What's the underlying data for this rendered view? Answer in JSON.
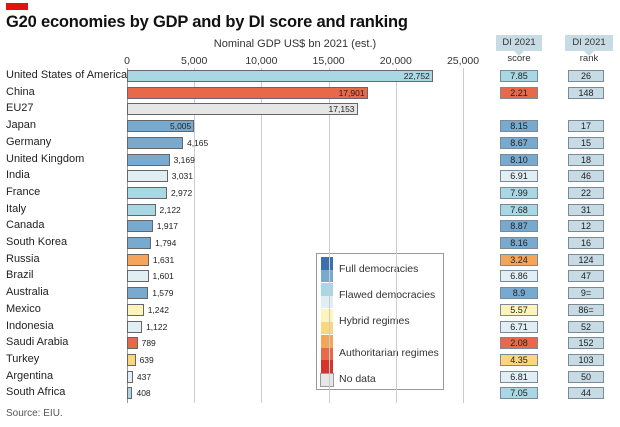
{
  "title": "G20 economies by GDP and by DI score and ranking",
  "source": "Source: EIU.",
  "colors": {
    "full_dark": "#3b6fae",
    "full": "#78aad0",
    "flawed": "#a9d7e3",
    "flawed_light": "#e1eff5",
    "hybrid_light": "#fdf3bb",
    "hybrid": "#fbd67c",
    "auth_light": "#f5a55a",
    "auth": "#e8694a",
    "auth_dark": "#d8332b",
    "no_data": "#e6e6e6",
    "brand_red": "#e3120b"
  },
  "chart_data": {
    "type": "bar",
    "orientation": "horizontal",
    "xlabel": "Nominal GDP US$ bn 2021 (est.)",
    "xlim": [
      0,
      25000
    ],
    "xticks": [
      "0",
      "5,000",
      "10,000",
      "15,000",
      "20,000",
      "25,000"
    ],
    "grid": true,
    "legend_placement": "bottom-right of plot",
    "score_header": "DI 2021 score",
    "rank_header": "DI 2021 rank",
    "categories": [
      "United States of America",
      "China",
      "EU27",
      "Japan",
      "Germany",
      "United Kingdom",
      "India",
      "France",
      "Italy",
      "Canada",
      "South Korea",
      "Russia",
      "Brazil",
      "Australia",
      "Mexico",
      "Indonesia",
      "Saudi Arabia",
      "Turkey",
      "Argentina",
      "South Africa"
    ],
    "values": [
      22752,
      17901,
      17153,
      5005,
      4165,
      3169,
      3031,
      2972,
      2122,
      1917,
      1794,
      1631,
      1601,
      1579,
      1242,
      1122,
      789,
      639,
      437,
      408
    ],
    "value_labels": [
      "22,752",
      "17,901",
      "17,153",
      "5,005",
      "4,165",
      "3,169",
      "3,031",
      "2,972",
      "2,122",
      "1,917",
      "1,794",
      "1,631",
      "1,601",
      "1,579",
      "1,242",
      "1,122",
      "789",
      "639",
      "437",
      "408"
    ],
    "regime_color": [
      "flawed",
      "auth",
      "no_data",
      "full",
      "full",
      "full",
      "flawed_light",
      "flawed",
      "flawed",
      "full",
      "full",
      "auth_light",
      "flawed_light",
      "full",
      "hybrid_light",
      "flawed_light",
      "auth",
      "hybrid",
      "flawed_light",
      "flawed"
    ],
    "di_score": [
      "7.85",
      "2.21",
      "",
      "8.15",
      "8.67",
      "8.10",
      "6.91",
      "7.99",
      "7.68",
      "8.87",
      "8.16",
      "3.24",
      "6.86",
      "8.9",
      "5.57",
      "6.71",
      "2.08",
      "4.35",
      "6.81",
      "7.05"
    ],
    "di_rank": [
      "26",
      "148",
      "",
      "17",
      "15",
      "18",
      "46",
      "22",
      "31",
      "12",
      "16",
      "124",
      "47",
      "9=",
      "86=",
      "52",
      "152",
      "103",
      "50",
      "44"
    ],
    "legend": [
      {
        "label": "Full democracies",
        "colors": [
          "full_dark",
          "full"
        ]
      },
      {
        "label": "Flawed democracies",
        "colors": [
          "flawed",
          "flawed_light"
        ]
      },
      {
        "label": "Hybrid regimes",
        "colors": [
          "hybrid_light",
          "hybrid"
        ]
      },
      {
        "label": "Authoritarian regimes",
        "colors": [
          "auth_light",
          "auth",
          "auth_dark"
        ]
      },
      {
        "label": "No data",
        "colors": [
          "no_data"
        ]
      }
    ]
  }
}
